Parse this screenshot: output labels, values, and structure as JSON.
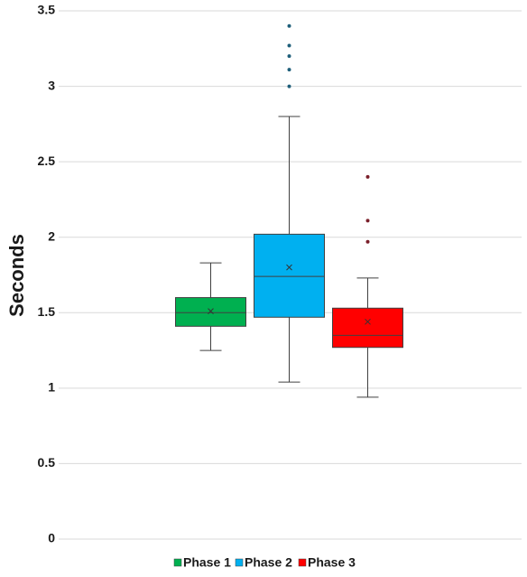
{
  "chart_data": {
    "type": "box",
    "y_label": "Seconds",
    "ylim": [
      0,
      3.5
    ],
    "yticks": [
      0,
      0.5,
      1,
      1.5,
      2,
      2.5,
      3,
      3.5
    ],
    "grid": true,
    "legend": "bottom",
    "series": [
      {
        "name": "Phase 1",
        "color": "#00b050",
        "outlier_color": "#1f5f3a",
        "min": 1.25,
        "q1": 1.41,
        "median": 1.5,
        "q3": 1.6,
        "max": 1.83,
        "mean": 1.51,
        "outliers": []
      },
      {
        "name": "Phase 2",
        "color": "#00b0f0",
        "outlier_color": "#1f5f7a",
        "min": 1.04,
        "q1": 1.47,
        "median": 1.74,
        "q3": 2.02,
        "max": 2.8,
        "mean": 1.8,
        "outliers": [
          3.0,
          3.11,
          3.2,
          3.27,
          3.4
        ]
      },
      {
        "name": "Phase 3",
        "color": "#ff0000",
        "outlier_color": "#7a1f2a",
        "min": 0.94,
        "q1": 1.27,
        "median": 1.35,
        "q3": 1.53,
        "max": 1.73,
        "mean": 1.44,
        "outliers": [
          1.97,
          2.11,
          2.4
        ]
      }
    ]
  }
}
